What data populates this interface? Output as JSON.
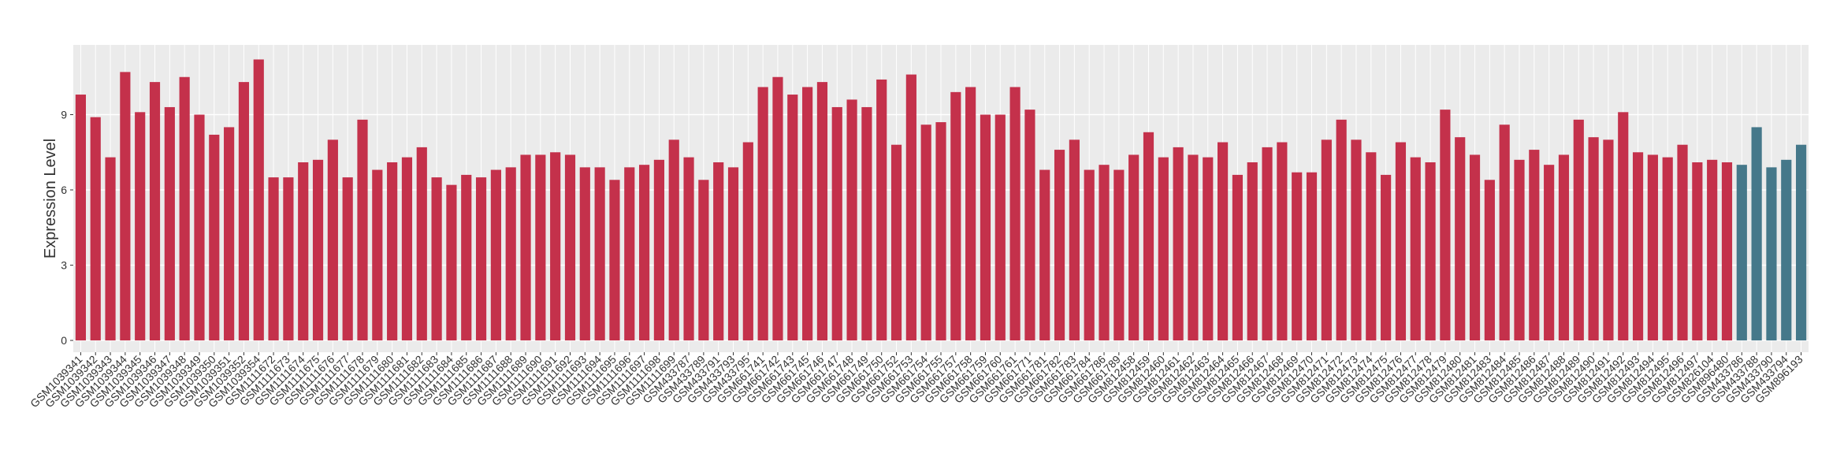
{
  "chart_data": {
    "type": "bar",
    "y_label": "Expression Level",
    "categories": [
      "GSM1039341",
      "GSM1039342",
      "GSM1039343",
      "GSM1039344",
      "GSM1039345",
      "GSM1039346",
      "GSM1039347",
      "GSM1039348",
      "GSM1039349",
      "GSM1039350",
      "GSM1039351",
      "GSM1039352",
      "GSM1039354",
      "GSM1111672",
      "GSM1111673",
      "GSM1111674",
      "GSM1111675",
      "GSM1111676",
      "GSM1111677",
      "GSM1111678",
      "GSM1111679",
      "GSM1111680",
      "GSM1111681",
      "GSM1111682",
      "GSM1111683",
      "GSM1111684",
      "GSM1111685",
      "GSM1111686",
      "GSM1111687",
      "GSM1111688",
      "GSM1111689",
      "GSM1111690",
      "GSM1111691",
      "GSM1111692",
      "GSM1111693",
      "GSM1111694",
      "GSM1111695",
      "GSM1111696",
      "GSM1111697",
      "GSM1111698",
      "GSM1111699",
      "GSM433787",
      "GSM433789",
      "GSM433791",
      "GSM433793",
      "GSM433795",
      "GSM661741",
      "GSM661742",
      "GSM661743",
      "GSM661745",
      "GSM661746",
      "GSM661747",
      "GSM661748",
      "GSM661749",
      "GSM661750",
      "GSM661752",
      "GSM661753",
      "GSM661754",
      "GSM661755",
      "GSM661757",
      "GSM661758",
      "GSM661759",
      "GSM661760",
      "GSM661761",
      "GSM661771",
      "GSM661781",
      "GSM661782",
      "GSM661783",
      "GSM661784",
      "GSM661786",
      "GSM661789",
      "GSM812458",
      "GSM812459",
      "GSM812460",
      "GSM812461",
      "GSM812462",
      "GSM812463",
      "GSM812464",
      "GSM812465",
      "GSM812466",
      "GSM812467",
      "GSM812468",
      "GSM812469",
      "GSM812470",
      "GSM812471",
      "GSM812472",
      "GSM812473",
      "GSM812474",
      "GSM812475",
      "GSM812476",
      "GSM812477",
      "GSM812478",
      "GSM812479",
      "GSM812480",
      "GSM812481",
      "GSM812483",
      "GSM812484",
      "GSM812485",
      "GSM812486",
      "GSM812487",
      "GSM812488",
      "GSM812489",
      "GSM812490",
      "GSM812491",
      "GSM812492",
      "GSM812493",
      "GSM812494",
      "GSM812495",
      "GSM812496",
      "GSM812497",
      "GSM826104",
      "GSM896480",
      "GSM433786",
      "GSM433788",
      "GSM433790",
      "GSM433794",
      "GSM896193"
    ],
    "values": [
      9.8,
      8.9,
      7.3,
      10.7,
      9.1,
      10.3,
      9.3,
      10.5,
      9.0,
      8.2,
      8.5,
      10.3,
      11.2,
      6.5,
      6.5,
      7.1,
      7.2,
      8.0,
      6.5,
      8.8,
      6.8,
      7.1,
      7.3,
      7.7,
      6.5,
      6.2,
      6.6,
      6.5,
      6.8,
      6.9,
      7.4,
      7.4,
      7.5,
      7.4,
      6.9,
      6.9,
      6.4,
      6.9,
      7.0,
      7.2,
      8.0,
      7.3,
      6.4,
      7.1,
      6.9,
      7.9,
      10.1,
      10.5,
      9.8,
      10.1,
      10.3,
      9.3,
      9.6,
      9.3,
      10.4,
      7.8,
      10.6,
      8.6,
      8.7,
      9.9,
      10.1,
      9.0,
      9.0,
      10.1,
      9.2,
      6.8,
      7.6,
      8.0,
      6.8,
      7.0,
      6.8,
      7.4,
      8.3,
      7.3,
      7.7,
      7.4,
      7.3,
      7.9,
      6.6,
      7.1,
      7.7,
      7.9,
      6.7,
      6.7,
      8.0,
      8.8,
      8.0,
      7.5,
      6.6,
      7.9,
      7.3,
      7.1,
      9.2,
      8.1,
      7.4,
      6.4,
      8.6,
      7.2,
      7.6,
      7.0,
      7.4,
      8.8,
      8.1,
      8.0,
      9.1,
      7.5,
      7.4,
      7.3,
      7.8,
      7.1,
      7.2,
      7.1,
      7.0,
      8.5,
      6.9,
      7.2,
      7.8
    ],
    "colors": [
      "#c4314b",
      "#c4314b",
      "#c4314b",
      "#c4314b",
      "#c4314b",
      "#c4314b",
      "#c4314b",
      "#c4314b",
      "#c4314b",
      "#c4314b",
      "#c4314b",
      "#c4314b",
      "#c4314b",
      "#c4314b",
      "#c4314b",
      "#c4314b",
      "#c4314b",
      "#c4314b",
      "#c4314b",
      "#c4314b",
      "#c4314b",
      "#c4314b",
      "#c4314b",
      "#c4314b",
      "#c4314b",
      "#c4314b",
      "#c4314b",
      "#c4314b",
      "#c4314b",
      "#c4314b",
      "#c4314b",
      "#c4314b",
      "#c4314b",
      "#c4314b",
      "#c4314b",
      "#c4314b",
      "#c4314b",
      "#c4314b",
      "#c4314b",
      "#c4314b",
      "#c4314b",
      "#c4314b",
      "#c4314b",
      "#c4314b",
      "#c4314b",
      "#c4314b",
      "#c4314b",
      "#c4314b",
      "#c4314b",
      "#c4314b",
      "#c4314b",
      "#c4314b",
      "#c4314b",
      "#c4314b",
      "#c4314b",
      "#c4314b",
      "#c4314b",
      "#c4314b",
      "#c4314b",
      "#c4314b",
      "#c4314b",
      "#c4314b",
      "#c4314b",
      "#c4314b",
      "#c4314b",
      "#c4314b",
      "#c4314b",
      "#c4314b",
      "#c4314b",
      "#c4314b",
      "#c4314b",
      "#c4314b",
      "#c4314b",
      "#c4314b",
      "#c4314b",
      "#c4314b",
      "#c4314b",
      "#c4314b",
      "#c4314b",
      "#c4314b",
      "#c4314b",
      "#c4314b",
      "#c4314b",
      "#c4314b",
      "#c4314b",
      "#c4314b",
      "#c4314b",
      "#c4314b",
      "#c4314b",
      "#c4314b",
      "#c4314b",
      "#c4314b",
      "#c4314b",
      "#c4314b",
      "#c4314b",
      "#c4314b",
      "#c4314b",
      "#c4314b",
      "#c4314b",
      "#c4314b",
      "#c4314b",
      "#c4314b",
      "#c4314b",
      "#c4314b",
      "#c4314b",
      "#c4314b",
      "#c4314b",
      "#c4314b",
      "#c4314b",
      "#c4314b",
      "#c4314b",
      "#c4314b",
      "#45788a",
      "#45788a",
      "#45788a",
      "#45788a",
      "#45788a"
    ],
    "ylim": [
      -0.47,
      11.78
    ],
    "yticks": [
      0,
      3,
      6,
      9
    ],
    "grid": true
  }
}
